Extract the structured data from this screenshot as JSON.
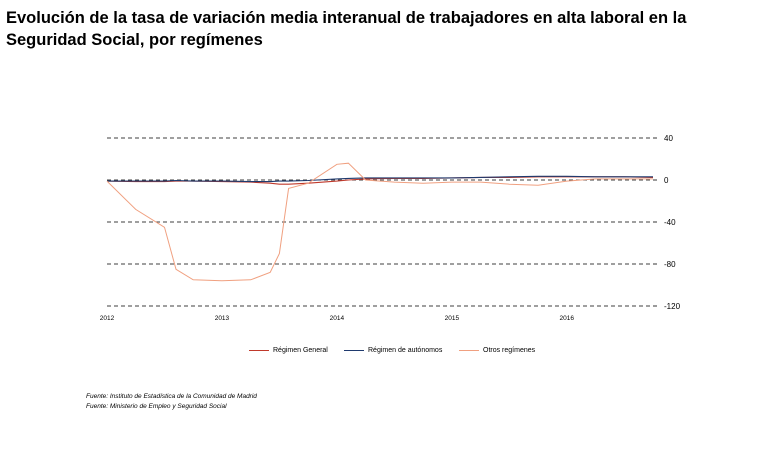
{
  "title": "Evolución de la tasa de variación media interanual de trabajadores en alta laboral en la Seguridad Social, por  regímenes",
  "sources": [
    "Fuente: Instituto de Estadística de la Comunidad de Madrid",
    "Fuente: Ministerio de Empleo y Seguridad Social"
  ],
  "chart_data": {
    "type": "line",
    "title": "Evolución de la tasa de variación media interanual de trabajadores en alta laboral en la Seguridad Social, por  regímenes",
    "xlabel": "",
    "ylabel": "",
    "ylim": [
      -120,
      40
    ],
    "yticks": [
      40,
      0,
      -40,
      -80,
      -120
    ],
    "xlim": [
      2012,
      2016.75
    ],
    "xticks": [
      2012,
      2013,
      2014,
      2015,
      2016
    ],
    "grid": "horizontal dashed",
    "legend_position": "bottom",
    "x": [
      2012.0,
      2012.25,
      2012.5,
      2012.6,
      2012.75,
      2013.0,
      2013.25,
      2013.42,
      2013.5,
      2013.58,
      2013.75,
      2014.0,
      2014.1,
      2014.25,
      2014.5,
      2014.75,
      2015.0,
      2015.25,
      2015.5,
      2015.75,
      2016.0,
      2016.25,
      2016.5,
      2016.75
    ],
    "series": [
      {
        "name": "Régimen General",
        "color": "#c0392b",
        "values": [
          -1,
          -1.5,
          -1.5,
          -1,
          -1,
          -1.5,
          -2,
          -3,
          -4,
          -4,
          -3,
          -1,
          0,
          1,
          1.5,
          1.5,
          2,
          2.5,
          2.5,
          3,
          3,
          3,
          3,
          2.5
        ]
      },
      {
        "name": "Régimen de autónomos",
        "color": "#1f3a6e",
        "values": [
          -1,
          -1,
          -1,
          -0.5,
          -1,
          -1,
          -1.5,
          -1.5,
          -1,
          -1,
          -0.5,
          1,
          1.5,
          2,
          2,
          2,
          2,
          2.5,
          3,
          3.5,
          3.5,
          3,
          3,
          3
        ]
      },
      {
        "name": "Otros regímenes",
        "color": "#f0a080",
        "values": [
          -1,
          -28,
          -45,
          -85,
          -95,
          -96,
          -95,
          -88,
          -70,
          -8,
          -3,
          15,
          16,
          0,
          -2,
          -3,
          -2,
          -2,
          -4,
          -5,
          -1,
          1,
          1,
          1
        ]
      }
    ]
  }
}
